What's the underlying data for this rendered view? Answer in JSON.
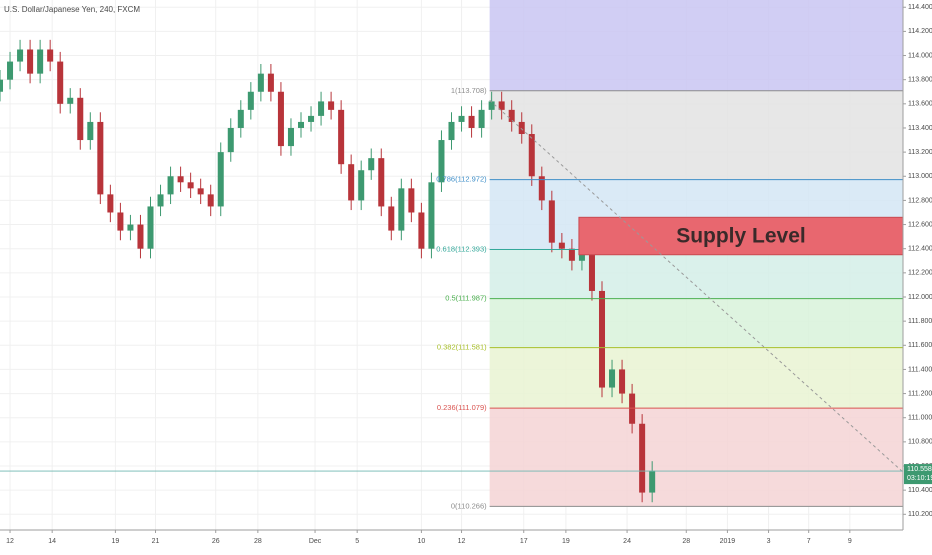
{
  "chart_data": {
    "type": "candlestick",
    "title": "U.S. Dollar/Japanese Yen, 240, FXCM",
    "up_color": "#3d9970",
    "down_color": "#b8343a",
    "x": [
      0,
      1,
      2,
      3,
      4,
      5,
      6,
      7,
      8,
      9,
      10,
      11,
      12,
      13,
      14,
      15,
      16,
      17,
      18,
      19,
      20,
      21,
      22,
      23,
      24,
      25,
      26,
      27,
      28,
      29,
      30,
      31,
      32,
      33,
      34,
      35,
      36,
      37,
      38,
      39,
      40,
      41,
      42,
      43,
      44,
      45,
      46,
      47,
      48,
      49,
      50,
      51,
      52,
      53,
      54,
      55,
      56,
      57,
      58,
      59,
      60,
      61,
      62,
      63,
      64,
      65
    ],
    "open": [
      113.7,
      113.8,
      113.95,
      114.05,
      113.85,
      114.05,
      113.95,
      113.6,
      113.65,
      113.3,
      113.45,
      112.85,
      112.7,
      112.55,
      112.6,
      112.4,
      112.75,
      112.85,
      113.0,
      112.95,
      112.9,
      112.85,
      112.75,
      113.2,
      113.4,
      113.55,
      113.7,
      113.85,
      113.7,
      113.25,
      113.4,
      113.45,
      113.5,
      113.62,
      113.55,
      113.1,
      112.8,
      113.05,
      113.15,
      112.75,
      112.55,
      112.9,
      112.7,
      112.4,
      112.95,
      113.3,
      113.45,
      113.5,
      113.4,
      113.55,
      113.62,
      113.55,
      113.45,
      113.35,
      113.0,
      112.8,
      112.45,
      112.4,
      112.3,
      112.45,
      112.05,
      111.25,
      111.4,
      111.2,
      110.95,
      110.38
    ],
    "high": [
      113.88,
      114.03,
      114.13,
      114.13,
      114.13,
      114.13,
      114.03,
      113.73,
      113.73,
      113.53,
      113.53,
      112.93,
      112.78,
      112.68,
      112.68,
      112.83,
      112.93,
      113.08,
      113.08,
      113.03,
      112.98,
      112.93,
      113.28,
      113.48,
      113.63,
      113.78,
      113.93,
      113.93,
      113.78,
      113.48,
      113.53,
      113.58,
      113.7,
      113.7,
      113.63,
      113.18,
      113.13,
      113.23,
      113.23,
      112.83,
      112.98,
      112.98,
      112.78,
      113.03,
      113.38,
      113.53,
      113.58,
      113.58,
      113.63,
      113.7,
      113.7,
      113.63,
      113.53,
      113.43,
      113.08,
      112.88,
      112.53,
      112.48,
      112.53,
      112.53,
      112.13,
      111.48,
      111.48,
      111.28,
      111.03,
      110.64
    ],
    "low": [
      113.62,
      113.72,
      113.87,
      113.77,
      113.77,
      113.87,
      113.52,
      113.52,
      113.22,
      113.22,
      112.77,
      112.62,
      112.47,
      112.47,
      112.32,
      112.32,
      112.67,
      112.77,
      112.87,
      112.82,
      112.77,
      112.67,
      112.67,
      113.12,
      113.32,
      113.47,
      113.62,
      113.62,
      113.17,
      113.17,
      113.32,
      113.37,
      113.42,
      113.47,
      113.02,
      112.72,
      112.72,
      112.97,
      112.67,
      112.47,
      112.47,
      112.62,
      112.32,
      112.32,
      112.87,
      113.22,
      113.37,
      113.32,
      113.32,
      113.47,
      113.47,
      113.37,
      113.27,
      112.92,
      112.72,
      112.37,
      112.32,
      112.22,
      112.22,
      111.97,
      111.17,
      111.17,
      111.12,
      110.87,
      110.3,
      110.3
    ],
    "close": [
      113.8,
      113.95,
      114.05,
      113.85,
      114.05,
      113.95,
      113.6,
      113.65,
      113.3,
      113.45,
      112.85,
      112.7,
      112.55,
      112.6,
      112.4,
      112.75,
      112.85,
      113.0,
      112.95,
      112.9,
      112.85,
      112.75,
      113.2,
      113.4,
      113.55,
      113.7,
      113.85,
      113.7,
      113.25,
      113.4,
      113.45,
      113.5,
      113.62,
      113.55,
      113.1,
      112.8,
      113.05,
      113.15,
      112.75,
      112.55,
      112.9,
      112.7,
      112.4,
      112.95,
      113.3,
      113.45,
      113.5,
      113.4,
      113.55,
      113.62,
      113.55,
      113.45,
      113.35,
      113.0,
      112.8,
      112.45,
      112.4,
      112.3,
      112.45,
      112.05,
      111.25,
      111.4,
      111.2,
      110.95,
      110.38,
      110.56
    ],
    "xlim": [
      0,
      90
    ],
    "xticks": [
      {
        "value": 1.0,
        "label": "12"
      },
      {
        "value": 5.2,
        "label": "14"
      },
      {
        "value": 11.5,
        "label": "19"
      },
      {
        "value": 15.5,
        "label": "21"
      },
      {
        "value": 21.5,
        "label": "26"
      },
      {
        "value": 25.7,
        "label": "28"
      },
      {
        "value": 31.4,
        "label": "Dec"
      },
      {
        "value": 35.6,
        "label": "5"
      },
      {
        "value": 42.0,
        "label": "10"
      },
      {
        "value": 46.0,
        "label": "12"
      },
      {
        "value": 52.2,
        "label": "17"
      },
      {
        "value": 56.4,
        "label": "19"
      },
      {
        "value": 62.5,
        "label": "24"
      },
      {
        "value": 68.4,
        "label": "28"
      },
      {
        "value": 72.5,
        "label": "2019"
      },
      {
        "value": 76.6,
        "label": "3"
      },
      {
        "value": 80.6,
        "label": "7"
      },
      {
        "value": 84.7,
        "label": "9"
      }
    ],
    "ylim": [
      110.07,
      114.46
    ],
    "yticks": [
      {
        "value": 110.2,
        "label": "110.200"
      },
      {
        "value": 110.4,
        "label": "110.400"
      },
      {
        "value": 110.6,
        "label": "110.600"
      },
      {
        "value": 110.8,
        "label": "110.800"
      },
      {
        "value": 111.0,
        "label": "111.000"
      },
      {
        "value": 111.2,
        "label": "111.200"
      },
      {
        "value": 111.4,
        "label": "111.400"
      },
      {
        "value": 111.6,
        "label": "111.600"
      },
      {
        "value": 111.8,
        "label": "111.800"
      },
      {
        "value": 112.0,
        "label": "112.000"
      },
      {
        "value": 112.2,
        "label": "112.200"
      },
      {
        "value": 112.4,
        "label": "112.400"
      },
      {
        "value": 112.6,
        "label": "112.600"
      },
      {
        "value": 112.8,
        "label": "112.800"
      },
      {
        "value": 113.0,
        "label": "113.000"
      },
      {
        "value": 113.2,
        "label": "113.200"
      },
      {
        "value": 113.4,
        "label": "113.400"
      },
      {
        "value": 113.6,
        "label": "113.600"
      },
      {
        "value": 113.8,
        "label": "113.800"
      },
      {
        "value": 114.0,
        "label": "114.000"
      },
      {
        "value": 114.2,
        "label": "114.200"
      },
      {
        "value": 114.4,
        "label": "114.400"
      }
    ],
    "grid": true,
    "fib_start_x": 48.8,
    "fib_top_color": "#c9c6f2",
    "fib_levels": [
      {
        "label": "1(113.708)",
        "value": 113.708,
        "color": "#8c8c8c",
        "fill": "#e3e3e3"
      },
      {
        "label": "0.786(112.972)",
        "value": 112.972,
        "color": "#3f8fc9",
        "fill": "#d4e6f5"
      },
      {
        "label": "0.618(112.393)",
        "value": 112.393,
        "color": "#33a89a",
        "fill": "#d3efe8"
      },
      {
        "label": "0.5(111.987)",
        "value": 111.987,
        "color": "#4cb050",
        "fill": "#d8f2da"
      },
      {
        "label": "0.382(111.581)",
        "value": 111.581,
        "color": "#a8bf2a",
        "fill": "#e9f3d2"
      },
      {
        "label": "0.236(111.079)",
        "value": 111.079,
        "color": "#d9534f",
        "fill": "#f5d3d5"
      },
      {
        "label": "0(110.266)",
        "value": 110.266,
        "color": "#8c8c8c",
        "fill": null
      }
    ],
    "supply_zone": {
      "label": "Supply Level",
      "top": 112.66,
      "bottom": 112.35,
      "x_start": 57.7,
      "color": "#e8676f"
    },
    "trendline": {
      "x": [
        48.8,
        90
      ],
      "y": [
        113.63,
        110.55
      ]
    },
    "last_price": {
      "value": 110.558,
      "countdown": "03:10:19",
      "color": "#3d9970"
    }
  }
}
